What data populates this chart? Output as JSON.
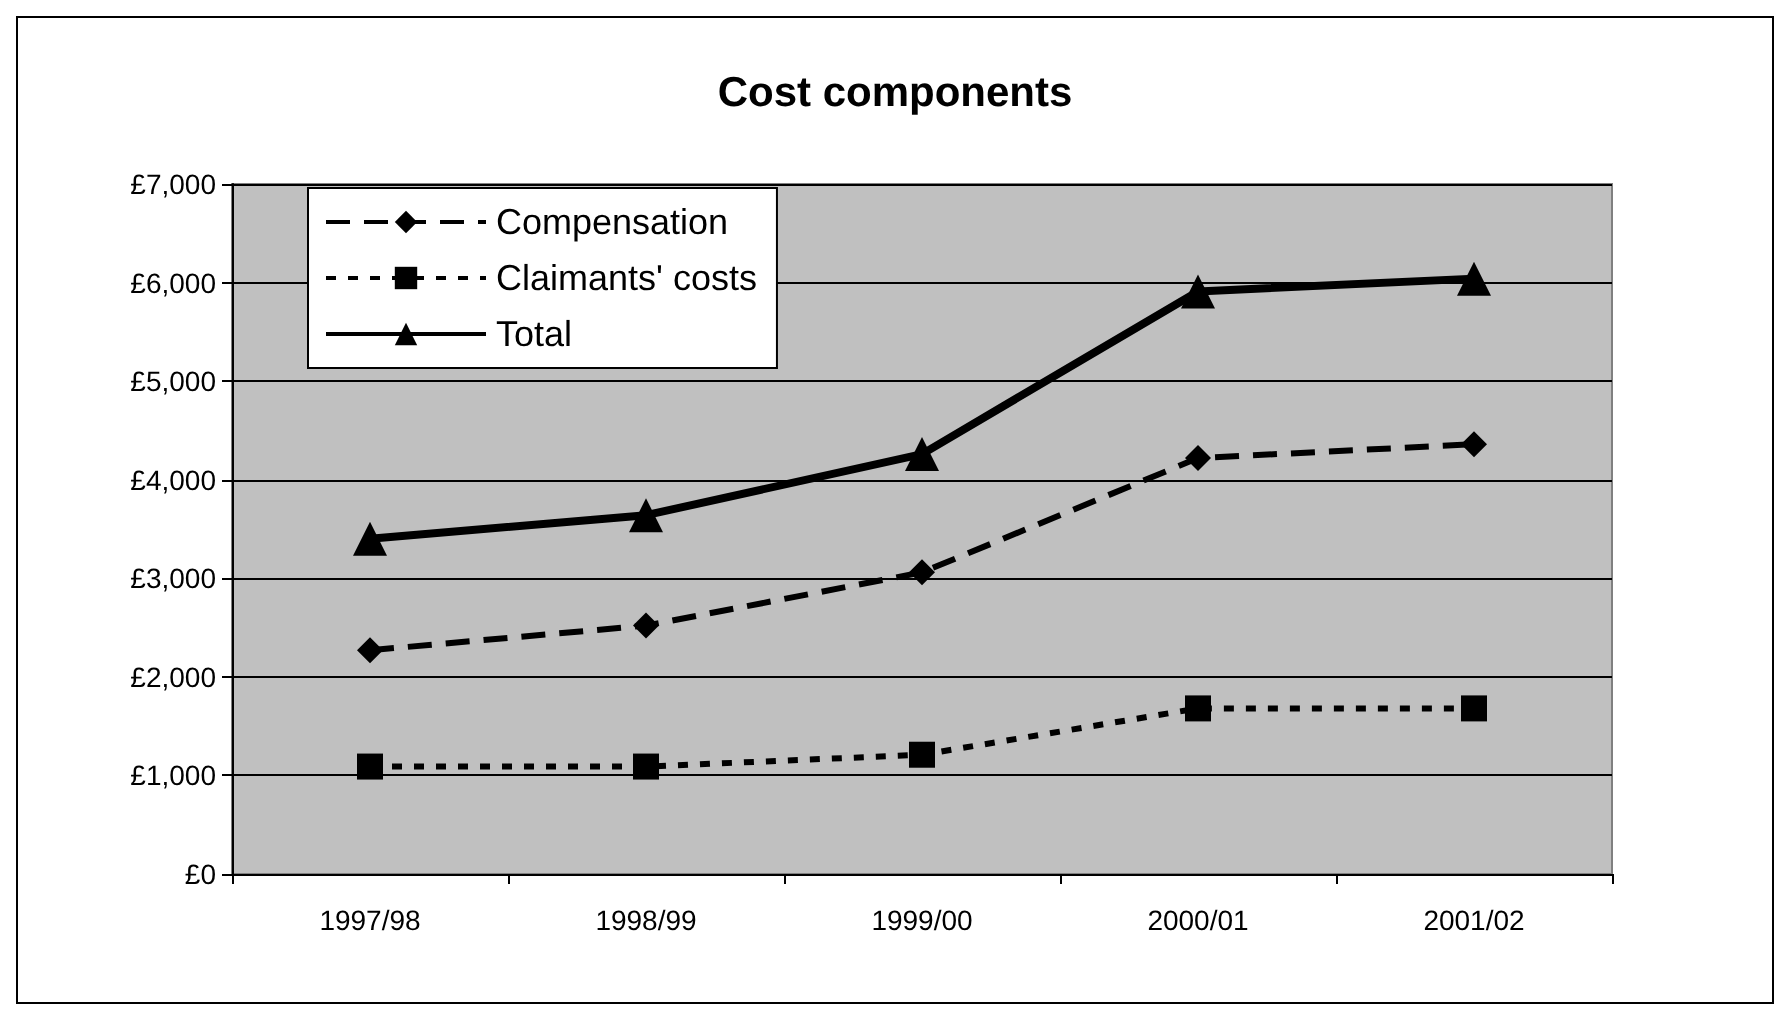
{
  "chart_data": {
    "type": "line",
    "title": "Cost components",
    "categories": [
      "1997/98",
      "1998/99",
      "1999/00",
      "2000/01",
      "2001/02"
    ],
    "series": [
      {
        "name": "Compensation",
        "color": "#000000",
        "marker": "diamond",
        "line_style": "dashed",
        "values": [
          2270,
          2520,
          3060,
          4220,
          4360
        ]
      },
      {
        "name": "Claimants' costs",
        "color": "#000000",
        "marker": "square",
        "line_style": "dotted",
        "values": [
          1090,
          1090,
          1210,
          1680,
          1680
        ]
      },
      {
        "name": "Total",
        "color": "#000000",
        "marker": "triangle",
        "line_style": "solid",
        "values": [
          3400,
          3640,
          4260,
          5910,
          6040
        ]
      }
    ],
    "ylim": [
      0,
      7000
    ],
    "yticks": [
      {
        "value": 0,
        "label": "£0"
      },
      {
        "value": 1000,
        "label": "£1,000"
      },
      {
        "value": 2000,
        "label": "£2,000"
      },
      {
        "value": 3000,
        "label": "£3,000"
      },
      {
        "value": 4000,
        "label": "£4,000"
      },
      {
        "value": 5000,
        "label": "£5,000"
      },
      {
        "value": 6000,
        "label": "£6,000"
      },
      {
        "value": 7000,
        "label": "£7,000"
      }
    ],
    "grid": "y",
    "legend": "top left"
  }
}
